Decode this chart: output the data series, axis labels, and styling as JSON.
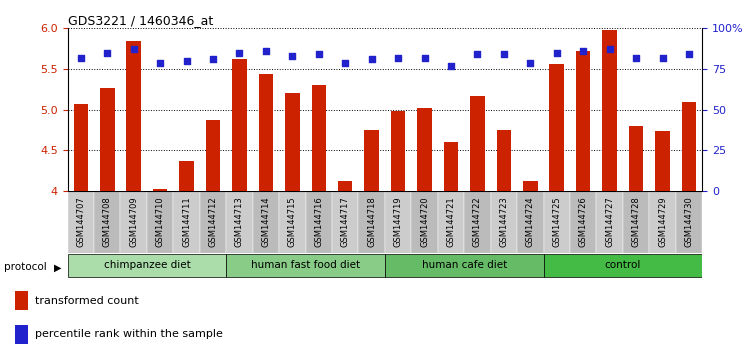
{
  "title": "GDS3221 / 1460346_at",
  "samples": [
    "GSM144707",
    "GSM144708",
    "GSM144709",
    "GSM144710",
    "GSM144711",
    "GSM144712",
    "GSM144713",
    "GSM144714",
    "GSM144715",
    "GSM144716",
    "GSM144717",
    "GSM144718",
    "GSM144719",
    "GSM144720",
    "GSM144721",
    "GSM144722",
    "GSM144723",
    "GSM144724",
    "GSM144725",
    "GSM144726",
    "GSM144727",
    "GSM144728",
    "GSM144729",
    "GSM144730"
  ],
  "transformed_count": [
    5.07,
    5.27,
    5.85,
    4.03,
    4.37,
    4.88,
    5.62,
    5.44,
    5.2,
    5.3,
    4.13,
    4.75,
    4.98,
    5.02,
    4.6,
    5.17,
    4.75,
    4.13,
    5.56,
    5.72,
    5.98,
    4.8,
    4.74,
    5.1
  ],
  "percentile_rank": [
    82,
    85,
    87,
    79,
    80,
    81,
    85,
    86,
    83,
    84,
    79,
    81,
    82,
    82,
    77,
    84,
    84,
    79,
    85,
    86,
    87,
    82,
    82,
    84
  ],
  "groups": [
    {
      "label": "chimpanzee diet",
      "start": 0,
      "end": 5,
      "color": "#aaddaa"
    },
    {
      "label": "human fast food diet",
      "start": 6,
      "end": 11,
      "color": "#88cc88"
    },
    {
      "label": "human cafe diet",
      "start": 12,
      "end": 17,
      "color": "#66bb66"
    },
    {
      "label": "control",
      "start": 18,
      "end": 23,
      "color": "#44bb44"
    }
  ],
  "ylim_left": [
    4.0,
    6.0
  ],
  "ylim_right": [
    0,
    100
  ],
  "yticks_left": [
    4.0,
    4.5,
    5.0,
    5.5,
    6.0
  ],
  "yticks_right": [
    0,
    25,
    50,
    75,
    100
  ],
  "bar_color": "#cc2200",
  "dot_color": "#2222cc",
  "bar_width": 0.55,
  "xtick_bg_odd": "#cccccc",
  "xtick_bg_even": "#bbbbbb",
  "legend_items": [
    {
      "label": "transformed count",
      "color": "#cc2200"
    },
    {
      "label": "percentile rank within the sample",
      "color": "#2222cc"
    }
  ]
}
